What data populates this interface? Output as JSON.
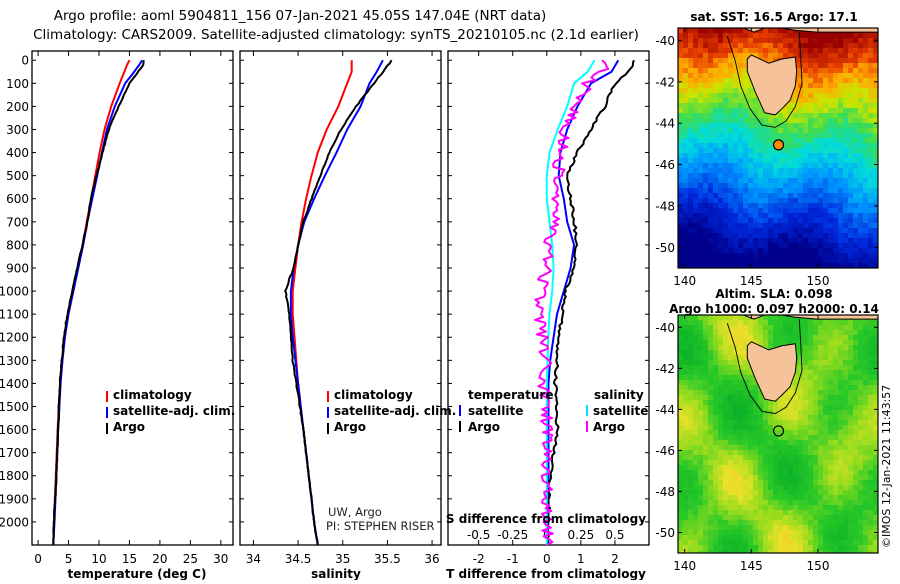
{
  "title_line1": "Argo profile: aoml 5904811_156 07-Jan-2021 45.05S 147.04E (NRT data)",
  "title_line2": "Climatology: CARS2009. Satellite-adjusted climatology: synTS_20210105.nc (2.1d earlier)",
  "depth_ticks": [
    0,
    100,
    200,
    300,
    400,
    500,
    600,
    700,
    800,
    900,
    1000,
    1100,
    1200,
    1300,
    1400,
    1500,
    1600,
    1700,
    1800,
    1900,
    2000
  ],
  "colors": {
    "climatology": "#ff0000",
    "satellite": "#0000ff",
    "argo": "#000000",
    "sat_T": "#000000",
    "sat_S": "#00ffff",
    "argo_S": "#ff00ff"
  },
  "chart_data": [
    {
      "type": "line",
      "xlabel": "temperature (deg C)",
      "xticks": [
        0,
        5,
        10,
        15,
        20,
        25,
        30
      ],
      "xlim": [
        -1,
        32
      ],
      "ylim": [
        2100,
        -40
      ],
      "legend": {
        "items": [
          "climatology",
          "satellite-adj. clim.",
          "Argo"
        ]
      },
      "series": [
        {
          "name": "climatology",
          "y": [
            0,
            20,
            60,
            100,
            200,
            300,
            400,
            500,
            600,
            700,
            800,
            900,
            1000,
            1100,
            1200,
            1300,
            1400,
            1500,
            1600,
            1800,
            2000,
            2100
          ],
          "values": [
            15.0,
            14.6,
            14.0,
            13.4,
            12.0,
            10.9,
            10.1,
            9.4,
            8.7,
            8.0,
            7.3,
            6.5,
            5.6,
            4.9,
            4.4,
            3.9,
            3.6,
            3.4,
            3.2,
            2.9,
            2.6,
            2.5
          ]
        },
        {
          "name": "satellite-adj. clim.",
          "y": [
            0,
            20,
            60,
            100,
            200,
            300,
            400,
            500,
            600,
            700,
            800,
            900,
            1000,
            1100,
            1200,
            1300,
            1400,
            1500,
            1600,
            1800,
            2000,
            2100
          ],
          "values": [
            17.1,
            16.6,
            15.5,
            14.3,
            12.6,
            11.3,
            10.5,
            9.7,
            8.9,
            8.1,
            7.4,
            6.6,
            5.8,
            5.0,
            4.4,
            4.0,
            3.7,
            3.5,
            3.3,
            3.0,
            2.7,
            2.5
          ]
        },
        {
          "name": "Argo",
          "y": [
            0,
            20,
            60,
            100,
            200,
            300,
            400,
            500,
            600,
            700,
            800,
            900,
            1000,
            1100,
            1200,
            1300,
            1400,
            1500,
            1600,
            1800,
            2000,
            2100
          ],
          "values": [
            17.4,
            17.2,
            16.2,
            15.0,
            13.2,
            11.6,
            10.6,
            9.6,
            8.7,
            8.1,
            7.3,
            6.4,
            5.6,
            4.8,
            4.2,
            3.9,
            3.6,
            3.4,
            3.3,
            3.0,
            2.6,
            2.5
          ]
        }
      ]
    },
    {
      "type": "line",
      "xlabel": "salinity",
      "xticks": [
        34,
        34.5,
        35,
        35.5,
        36
      ],
      "xlim": [
        33.85,
        36.1
      ],
      "ylim": [
        2100,
        -40
      ],
      "legend": {
        "items": [
          "climatology",
          "satellite-adj. clim.",
          "Argo"
        ]
      },
      "annotation": [
        "UW, Argo",
        "PI: STEPHEN RISER"
      ],
      "series": [
        {
          "name": "climatology",
          "y": [
            0,
            50,
            100,
            200,
            300,
            400,
            500,
            600,
            700,
            800,
            900,
            1000,
            1100,
            1200,
            1400,
            1600,
            1800,
            2000,
            2100
          ],
          "values": [
            35.1,
            35.1,
            35.05,
            34.95,
            34.82,
            34.72,
            34.65,
            34.59,
            34.54,
            34.5,
            34.47,
            34.44,
            34.44,
            34.46,
            34.5,
            34.56,
            34.62,
            34.68,
            34.72
          ]
        },
        {
          "name": "satellite-adj. clim.",
          "y": [
            0,
            50,
            100,
            200,
            300,
            400,
            500,
            600,
            700,
            800,
            900,
            1000,
            1100,
            1200,
            1400,
            1600,
            1800,
            2000,
            2100
          ],
          "values": [
            35.45,
            35.38,
            35.3,
            35.2,
            35.05,
            34.93,
            34.8,
            34.68,
            34.57,
            34.5,
            34.45,
            34.42,
            34.42,
            34.44,
            34.5,
            34.56,
            34.62,
            34.68,
            34.72
          ]
        },
        {
          "name": "Argo",
          "y": [
            0,
            50,
            100,
            200,
            300,
            400,
            500,
            600,
            700,
            800,
            900,
            950,
            1000,
            1050,
            1100,
            1200,
            1300,
            1400,
            1600,
            1800,
            2000,
            2100
          ],
          "values": [
            35.55,
            35.45,
            35.35,
            35.15,
            34.98,
            34.85,
            34.75,
            34.65,
            34.56,
            34.5,
            34.45,
            34.4,
            34.36,
            34.38,
            34.4,
            34.42,
            34.44,
            34.48,
            34.56,
            34.62,
            34.68,
            34.72
          ]
        }
      ]
    },
    {
      "type": "line",
      "xlabel": "T difference from climatology",
      "s_label": "S difference from climatology",
      "xticks": [
        -2,
        -1,
        0,
        1,
        2
      ],
      "s_ticks": [
        "-0.5",
        "-0.25",
        "0",
        "0.25",
        "0.5"
      ],
      "xlim": [
        -2.9,
        3.0
      ],
      "ylim": [
        2100,
        -40
      ],
      "legend": {
        "left_title": "temperature",
        "right_title": "salinity",
        "left": [
          "satellite",
          "Argo"
        ],
        "right": [
          "satellite",
          "Argo"
        ]
      },
      "series": [
        {
          "name": "temperature satellite",
          "y": [
            0,
            50,
            100,
            200,
            300,
            400,
            500,
            600,
            700,
            800,
            900,
            1000,
            1100,
            1200,
            1300,
            1400,
            1500,
            1600,
            1800,
            2000,
            2100
          ],
          "values": [
            2.1,
            1.9,
            1.3,
            0.9,
            0.6,
            0.4,
            0.35,
            0.5,
            0.6,
            0.8,
            0.7,
            0.5,
            0.3,
            0.2,
            0.1,
            0.05,
            0.05,
            0.05,
            0.05,
            0.05,
            0.0
          ]
        },
        {
          "name": "temperature Argo",
          "y": [
            0,
            50,
            100,
            200,
            300,
            400,
            500,
            600,
            700,
            800,
            900,
            1000,
            1100,
            1200,
            1300,
            1400,
            1500,
            1600,
            1700,
            1800,
            2000,
            2100
          ],
          "values": [
            2.6,
            2.4,
            2.0,
            1.7,
            1.3,
            0.9,
            0.6,
            0.7,
            0.8,
            0.9,
            0.8,
            0.55,
            0.45,
            0.35,
            0.3,
            0.25,
            0.3,
            0.3,
            0.2,
            0.1,
            0.05,
            0.0
          ]
        },
        {
          "name": "salinity satellite",
          "y": [
            0,
            50,
            100,
            200,
            300,
            400,
            500,
            600,
            700,
            800,
            900,
            1000,
            1100,
            1200,
            1400,
            1600,
            1800,
            2000,
            2100
          ],
          "values": [
            0.35,
            0.3,
            0.2,
            0.15,
            0.08,
            0.02,
            0.0,
            0.0,
            0.02,
            0.04,
            0.05,
            0.04,
            0.02,
            0.01,
            0.0,
            0.0,
            0.0,
            0.0,
            0.0
          ]
        },
        {
          "name": "salinity Argo",
          "y": [
            0,
            50,
            100,
            200,
            300,
            400,
            500,
            600,
            700,
            800,
            900,
            1000,
            1100,
            1200,
            1300,
            1400,
            1500,
            1600,
            1800,
            2000,
            2100
          ],
          "values": [
            0.45,
            0.4,
            0.3,
            0.2,
            0.14,
            0.1,
            0.08,
            0.07,
            0.05,
            0.02,
            0.0,
            -0.05,
            -0.06,
            -0.03,
            -0.01,
            -0.02,
            -0.01,
            0.0,
            0.0,
            0.0,
            0.0
          ]
        }
      ]
    },
    {
      "type": "heatmap",
      "title": "sat. SST: 16.5 Argo: 17.1",
      "lon_ticks": [
        140,
        145,
        150
      ],
      "lat_ticks": [
        -40,
        -42,
        -44,
        -46,
        -48,
        -50
      ],
      "xlim": [
        139.5,
        154.5
      ],
      "ylim": [
        -51,
        -39.4
      ],
      "argo_position": {
        "lon": 147.04,
        "lat": -45.05
      }
    },
    {
      "type": "heatmap",
      "title_line1": "Altim. SLA: 0.098",
      "title_line2": "Argo h1000: 0.097 h2000: 0.14",
      "lon_ticks": [
        140,
        145,
        150
      ],
      "lat_ticks": [
        -40,
        -42,
        -44,
        -46,
        -48,
        -50
      ],
      "xlim": [
        139.5,
        154.5
      ],
      "ylim": [
        -51,
        -39.4
      ],
      "argo_position": {
        "lon": 147.04,
        "lat": -45.05
      }
    }
  ],
  "credit": "©IMOS 12-Jan-2021 11:43:57"
}
